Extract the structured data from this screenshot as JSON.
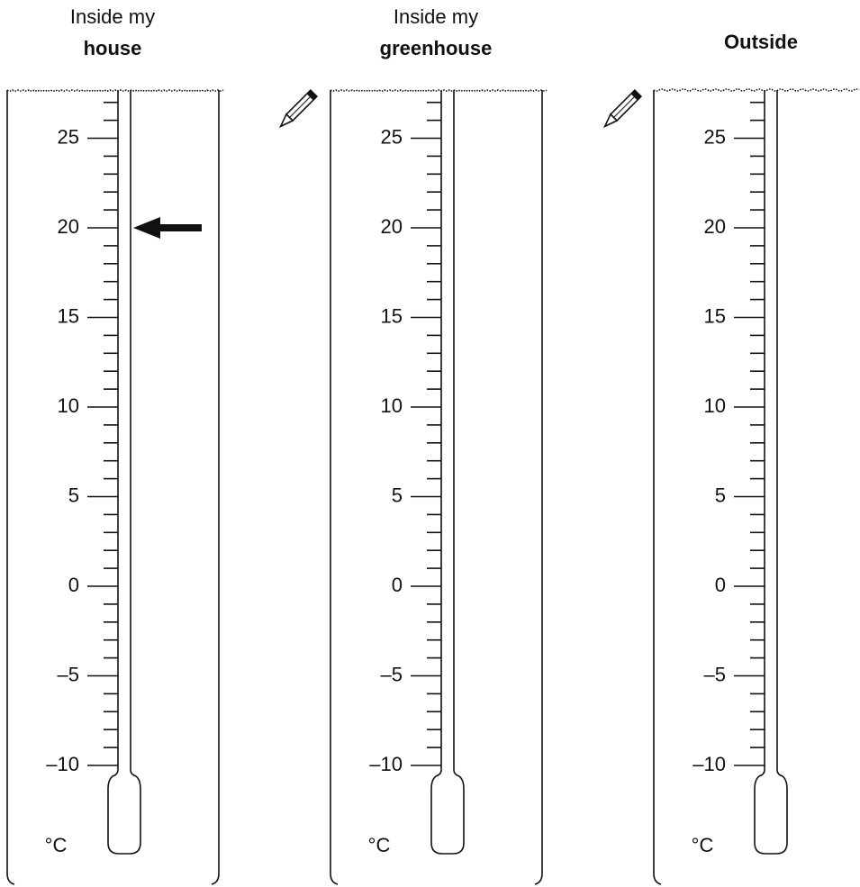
{
  "thermometers": [
    {
      "label_line1": "Inside my",
      "label_bold": "house",
      "reading": 20
    },
    {
      "label_line1": "Inside my",
      "label_bold": "greenhouse"
    },
    {
      "label_bold": "Outside"
    }
  ],
  "scale": {
    "min": -10,
    "max": 27,
    "minor_step": 1,
    "unit": "°C",
    "ticks": [
      {
        "value": -10,
        "label": "–10"
      },
      {
        "value": -5,
        "label": "–5"
      },
      0,
      5,
      10,
      15,
      20,
      25
    ]
  }
}
